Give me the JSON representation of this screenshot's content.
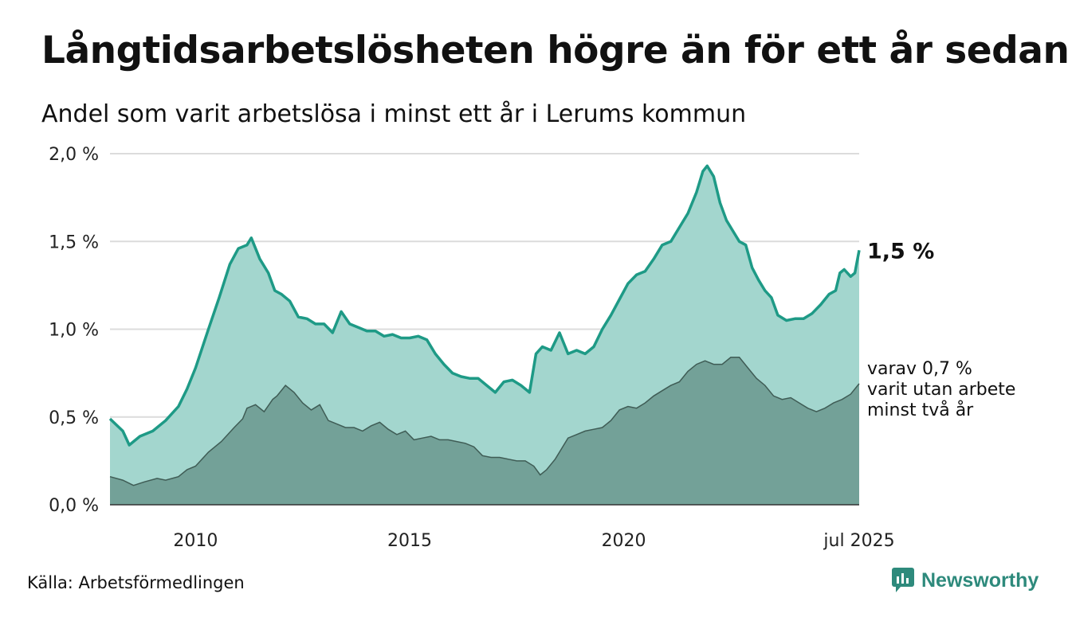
{
  "title": "Långtidsarbetslösheten högre än för ett år sedan",
  "subtitle": "Andel som varit arbetslösa i minst ett år i Lerums kommun",
  "source": "Källa: Arbetsförmedlingen",
  "brand": "Newsworthy",
  "colors": {
    "main_line": "#1e9a86",
    "main_fill": "#a3d6ce",
    "sub_fill": "#73a198",
    "sub_line": "#3f5c55",
    "grid": "#dcdcdc",
    "logo": "#2e8a7c"
  },
  "chart_data": {
    "type": "area",
    "x_unit": "year",
    "y_unit": "%",
    "ylim": [
      0,
      2.0
    ],
    "xlim": [
      2008.0,
      2025.5
    ],
    "y_ticks": [
      0,
      0.5,
      1.0,
      1.5,
      2.0
    ],
    "y_tick_labels": [
      "0,0 %",
      "0,5 %",
      "1,0 %",
      "1,5 %",
      "2,0 %"
    ],
    "x_ticks": [
      2010,
      2015,
      2020,
      2025.5
    ],
    "x_tick_labels": [
      "2010",
      "2015",
      "2020",
      "jul 2025"
    ],
    "grid": true,
    "series": [
      {
        "end_label": "1,5 %",
        "points": [
          [
            2008.0,
            0.49
          ],
          [
            2008.3,
            0.42
          ],
          [
            2008.45,
            0.34
          ],
          [
            2008.7,
            0.39
          ],
          [
            2009.0,
            0.42
          ],
          [
            2009.3,
            0.48
          ],
          [
            2009.6,
            0.56
          ],
          [
            2009.8,
            0.66
          ],
          [
            2010.0,
            0.78
          ],
          [
            2010.3,
            1.0
          ],
          [
            2010.55,
            1.18
          ],
          [
            2010.8,
            1.37
          ],
          [
            2011.0,
            1.46
          ],
          [
            2011.2,
            1.48
          ],
          [
            2011.3,
            1.52
          ],
          [
            2011.5,
            1.4
          ],
          [
            2011.7,
            1.32
          ],
          [
            2011.85,
            1.22
          ],
          [
            2012.0,
            1.2
          ],
          [
            2012.2,
            1.16
          ],
          [
            2012.4,
            1.07
          ],
          [
            2012.6,
            1.06
          ],
          [
            2012.8,
            1.03
          ],
          [
            2013.0,
            1.03
          ],
          [
            2013.2,
            0.98
          ],
          [
            2013.4,
            1.1
          ],
          [
            2013.6,
            1.03
          ],
          [
            2013.8,
            1.01
          ],
          [
            2014.0,
            0.99
          ],
          [
            2014.2,
            0.99
          ],
          [
            2014.4,
            0.96
          ],
          [
            2014.6,
            0.97
          ],
          [
            2014.8,
            0.95
          ],
          [
            2015.0,
            0.95
          ],
          [
            2015.2,
            0.96
          ],
          [
            2015.4,
            0.94
          ],
          [
            2015.6,
            0.86
          ],
          [
            2015.8,
            0.8
          ],
          [
            2016.0,
            0.75
          ],
          [
            2016.2,
            0.73
          ],
          [
            2016.4,
            0.72
          ],
          [
            2016.6,
            0.72
          ],
          [
            2016.8,
            0.68
          ],
          [
            2017.0,
            0.64
          ],
          [
            2017.2,
            0.7
          ],
          [
            2017.4,
            0.71
          ],
          [
            2017.6,
            0.68
          ],
          [
            2017.8,
            0.64
          ],
          [
            2017.95,
            0.86
          ],
          [
            2018.1,
            0.9
          ],
          [
            2018.3,
            0.88
          ],
          [
            2018.5,
            0.98
          ],
          [
            2018.7,
            0.86
          ],
          [
            2018.9,
            0.88
          ],
          [
            2019.1,
            0.86
          ],
          [
            2019.3,
            0.9
          ],
          [
            2019.5,
            1.0
          ],
          [
            2019.7,
            1.08
          ],
          [
            2019.9,
            1.17
          ],
          [
            2020.1,
            1.26
          ],
          [
            2020.3,
            1.31
          ],
          [
            2020.5,
            1.33
          ],
          [
            2020.7,
            1.4
          ],
          [
            2020.9,
            1.48
          ],
          [
            2021.1,
            1.5
          ],
          [
            2021.3,
            1.58
          ],
          [
            2021.5,
            1.66
          ],
          [
            2021.7,
            1.78
          ],
          [
            2021.85,
            1.9
          ],
          [
            2021.95,
            1.93
          ],
          [
            2022.1,
            1.87
          ],
          [
            2022.25,
            1.72
          ],
          [
            2022.4,
            1.62
          ],
          [
            2022.55,
            1.56
          ],
          [
            2022.7,
            1.5
          ],
          [
            2022.85,
            1.48
          ],
          [
            2023.0,
            1.35
          ],
          [
            2023.15,
            1.28
          ],
          [
            2023.3,
            1.22
          ],
          [
            2023.45,
            1.18
          ],
          [
            2023.6,
            1.08
          ],
          [
            2023.8,
            1.05
          ],
          [
            2024.0,
            1.06
          ],
          [
            2024.2,
            1.06
          ],
          [
            2024.4,
            1.09
          ],
          [
            2024.6,
            1.14
          ],
          [
            2024.8,
            1.2
          ],
          [
            2024.95,
            1.22
          ],
          [
            2025.05,
            1.32
          ],
          [
            2025.15,
            1.34
          ],
          [
            2025.3,
            1.3
          ],
          [
            2025.4,
            1.32
          ],
          [
            2025.5,
            1.45
          ]
        ]
      },
      {
        "end_label": "varav 0,7 %\nvarit utan arbete\nminst två år",
        "points": [
          [
            2008.0,
            0.16
          ],
          [
            2008.3,
            0.14
          ],
          [
            2008.55,
            0.11
          ],
          [
            2008.8,
            0.13
          ],
          [
            2009.1,
            0.15
          ],
          [
            2009.3,
            0.14
          ],
          [
            2009.6,
            0.16
          ],
          [
            2009.8,
            0.2
          ],
          [
            2010.0,
            0.22
          ],
          [
            2010.3,
            0.3
          ],
          [
            2010.6,
            0.36
          ],
          [
            2010.9,
            0.44
          ],
          [
            2011.1,
            0.49
          ],
          [
            2011.2,
            0.55
          ],
          [
            2011.4,
            0.57
          ],
          [
            2011.6,
            0.53
          ],
          [
            2011.8,
            0.6
          ],
          [
            2011.9,
            0.62
          ],
          [
            2012.1,
            0.68
          ],
          [
            2012.3,
            0.64
          ],
          [
            2012.5,
            0.58
          ],
          [
            2012.7,
            0.54
          ],
          [
            2012.9,
            0.57
          ],
          [
            2013.1,
            0.48
          ],
          [
            2013.3,
            0.46
          ],
          [
            2013.5,
            0.44
          ],
          [
            2013.7,
            0.44
          ],
          [
            2013.9,
            0.42
          ],
          [
            2014.1,
            0.45
          ],
          [
            2014.3,
            0.47
          ],
          [
            2014.5,
            0.43
          ],
          [
            2014.7,
            0.4
          ],
          [
            2014.9,
            0.42
          ],
          [
            2015.1,
            0.37
          ],
          [
            2015.3,
            0.38
          ],
          [
            2015.5,
            0.39
          ],
          [
            2015.7,
            0.37
          ],
          [
            2015.9,
            0.37
          ],
          [
            2016.1,
            0.36
          ],
          [
            2016.3,
            0.35
          ],
          [
            2016.5,
            0.33
          ],
          [
            2016.7,
            0.28
          ],
          [
            2016.9,
            0.27
          ],
          [
            2017.1,
            0.27
          ],
          [
            2017.3,
            0.26
          ],
          [
            2017.5,
            0.25
          ],
          [
            2017.7,
            0.25
          ],
          [
            2017.9,
            0.22
          ],
          [
            2018.05,
            0.17
          ],
          [
            2018.2,
            0.2
          ],
          [
            2018.4,
            0.26
          ],
          [
            2018.55,
            0.32
          ],
          [
            2018.7,
            0.38
          ],
          [
            2018.9,
            0.4
          ],
          [
            2019.1,
            0.42
          ],
          [
            2019.3,
            0.43
          ],
          [
            2019.5,
            0.44
          ],
          [
            2019.7,
            0.48
          ],
          [
            2019.9,
            0.54
          ],
          [
            2020.1,
            0.56
          ],
          [
            2020.3,
            0.55
          ],
          [
            2020.5,
            0.58
          ],
          [
            2020.7,
            0.62
          ],
          [
            2020.9,
            0.65
          ],
          [
            2021.1,
            0.68
          ],
          [
            2021.3,
            0.7
          ],
          [
            2021.5,
            0.76
          ],
          [
            2021.7,
            0.8
          ],
          [
            2021.9,
            0.82
          ],
          [
            2022.1,
            0.8
          ],
          [
            2022.3,
            0.8
          ],
          [
            2022.5,
            0.84
          ],
          [
            2022.7,
            0.84
          ],
          [
            2022.9,
            0.78
          ],
          [
            2023.1,
            0.72
          ],
          [
            2023.3,
            0.68
          ],
          [
            2023.5,
            0.62
          ],
          [
            2023.7,
            0.6
          ],
          [
            2023.9,
            0.61
          ],
          [
            2024.1,
            0.58
          ],
          [
            2024.3,
            0.55
          ],
          [
            2024.5,
            0.53
          ],
          [
            2024.7,
            0.55
          ],
          [
            2024.9,
            0.58
          ],
          [
            2025.1,
            0.6
          ],
          [
            2025.3,
            0.63
          ],
          [
            2025.5,
            0.69
          ]
        ]
      }
    ]
  }
}
